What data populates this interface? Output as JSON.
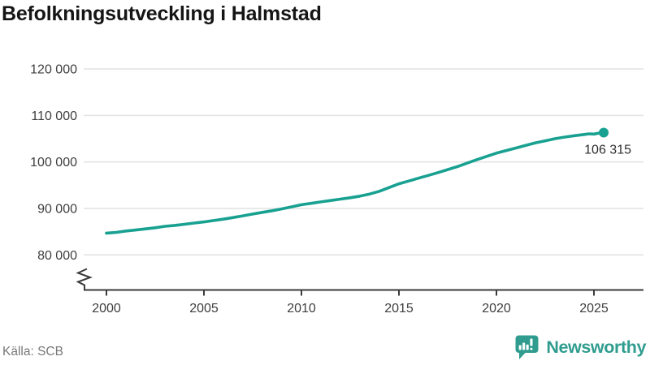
{
  "page": {
    "title": "Befolkningsutveckling i Halmstad",
    "source": "Källa: SCB"
  },
  "branding": {
    "name": "Newsworthy",
    "color": "#2f9c8f"
  },
  "chart_data": {
    "type": "line",
    "title": "Befolkningsutveckling i Halmstad",
    "xlabel": "",
    "ylabel": "",
    "grid": "horizontal",
    "legend": "none",
    "axis_break_at_bottom": true,
    "ylim": [
      80000,
      120000
    ],
    "xlim": [
      1998.8,
      2027.5
    ],
    "x_ticks": [
      2000,
      2005,
      2010,
      2015,
      2020,
      2025
    ],
    "y_ticks": [
      {
        "value": 80000,
        "label": "80 000"
      },
      {
        "value": 90000,
        "label": "90 000"
      },
      {
        "value": 100000,
        "label": "100 000"
      },
      {
        "value": 110000,
        "label": "110 000"
      },
      {
        "value": 120000,
        "label": "120 000"
      }
    ],
    "series": [
      {
        "color": "#18a191",
        "points": [
          [
            2000,
            84700
          ],
          [
            2000.5,
            84850
          ],
          [
            2001,
            85150
          ],
          [
            2001.5,
            85350
          ],
          [
            2002,
            85600
          ],
          [
            2002.5,
            85850
          ],
          [
            2003,
            86150
          ],
          [
            2003.5,
            86350
          ],
          [
            2004,
            86600
          ],
          [
            2004.5,
            86850
          ],
          [
            2005,
            87100
          ],
          [
            2005.5,
            87400
          ],
          [
            2006,
            87700
          ],
          [
            2006.5,
            88050
          ],
          [
            2007,
            88400
          ],
          [
            2007.5,
            88800
          ],
          [
            2008,
            89150
          ],
          [
            2008.5,
            89500
          ],
          [
            2009,
            89900
          ],
          [
            2009.5,
            90350
          ],
          [
            2010,
            90800
          ],
          [
            2010.5,
            91100
          ],
          [
            2011,
            91400
          ],
          [
            2011.5,
            91700
          ],
          [
            2012,
            92000
          ],
          [
            2012.5,
            92300
          ],
          [
            2013,
            92650
          ],
          [
            2013.5,
            93100
          ],
          [
            2014,
            93700
          ],
          [
            2014.5,
            94500
          ],
          [
            2015,
            95300
          ],
          [
            2015.5,
            95900
          ],
          [
            2016,
            96500
          ],
          [
            2016.5,
            97100
          ],
          [
            2017,
            97700
          ],
          [
            2017.5,
            98350
          ],
          [
            2018,
            99000
          ],
          [
            2018.5,
            99750
          ],
          [
            2019,
            100500
          ],
          [
            2019.5,
            101200
          ],
          [
            2020,
            101900
          ],
          [
            2020.5,
            102450
          ],
          [
            2021,
            103000
          ],
          [
            2021.5,
            103550
          ],
          [
            2022,
            104100
          ],
          [
            2022.5,
            104550
          ],
          [
            2023,
            105000
          ],
          [
            2023.5,
            105350
          ],
          [
            2024,
            105650
          ],
          [
            2024.5,
            105900
          ],
          [
            2024.75,
            106050
          ],
          [
            2025,
            106000
          ],
          [
            2025.25,
            106200
          ],
          [
            2025.5,
            106315
          ]
        ]
      }
    ],
    "endpoint": {
      "year": 2025.5,
      "value": 106315,
      "label": "106 315"
    }
  }
}
